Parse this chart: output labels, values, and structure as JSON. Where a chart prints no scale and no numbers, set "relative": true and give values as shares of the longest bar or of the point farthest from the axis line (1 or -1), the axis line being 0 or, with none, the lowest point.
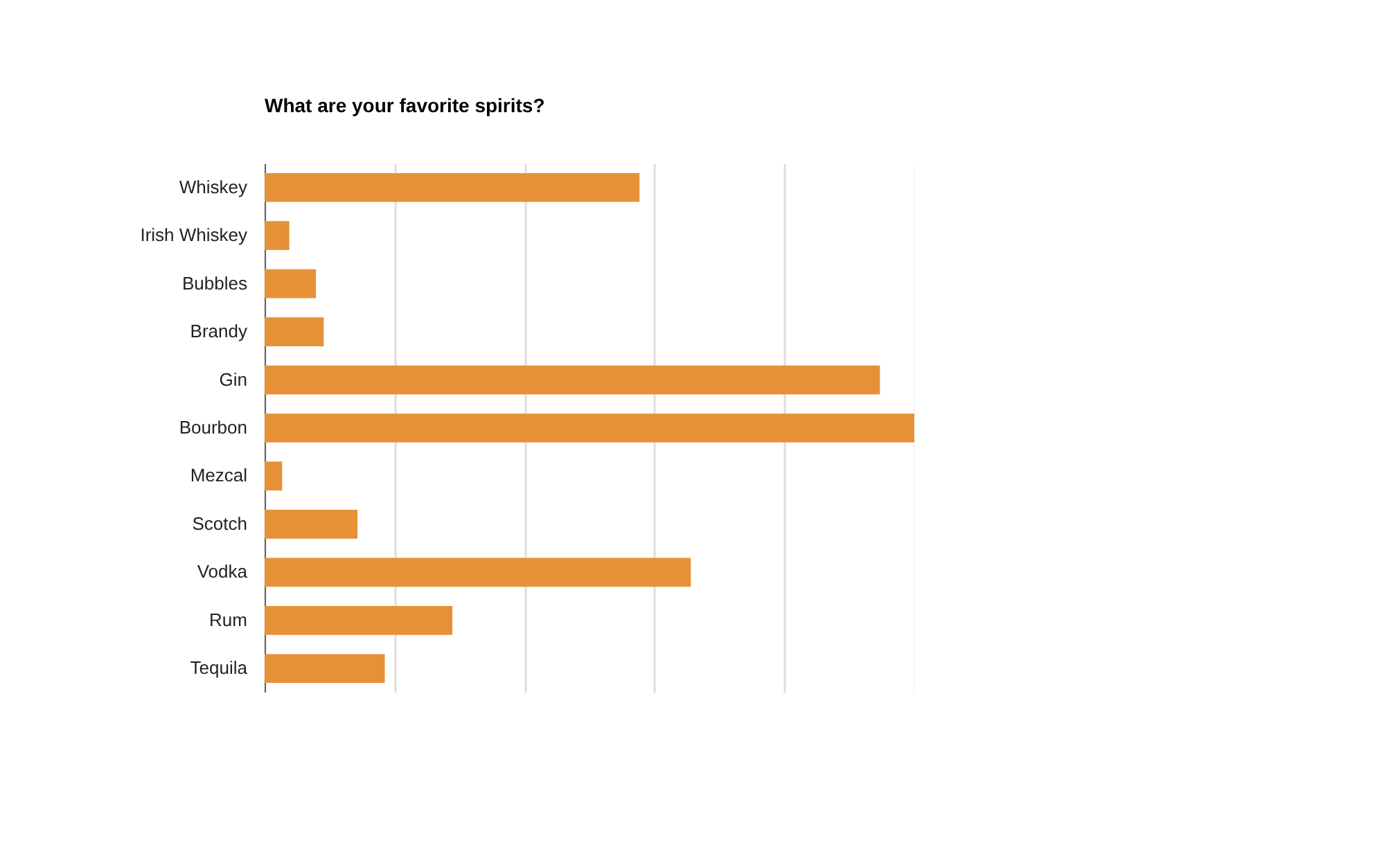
{
  "chart_data": {
    "type": "bar",
    "orientation": "horizontal",
    "relative": true,
    "title": "What are your favorite spirits?",
    "categories": [
      "Whiskey",
      "Irish Whiskey",
      "Bubbles",
      "Brandy",
      "Gin",
      "Bourbon",
      "Mezcal",
      "Scotch",
      "Vodka",
      "Rum",
      "Tequila"
    ],
    "values": [
      0.577,
      0.038,
      0.079,
      0.091,
      0.947,
      1,
      0.027,
      0.143,
      0.656,
      0.289,
      0.185
    ],
    "color": "#e69138",
    "grid": "x"
  }
}
